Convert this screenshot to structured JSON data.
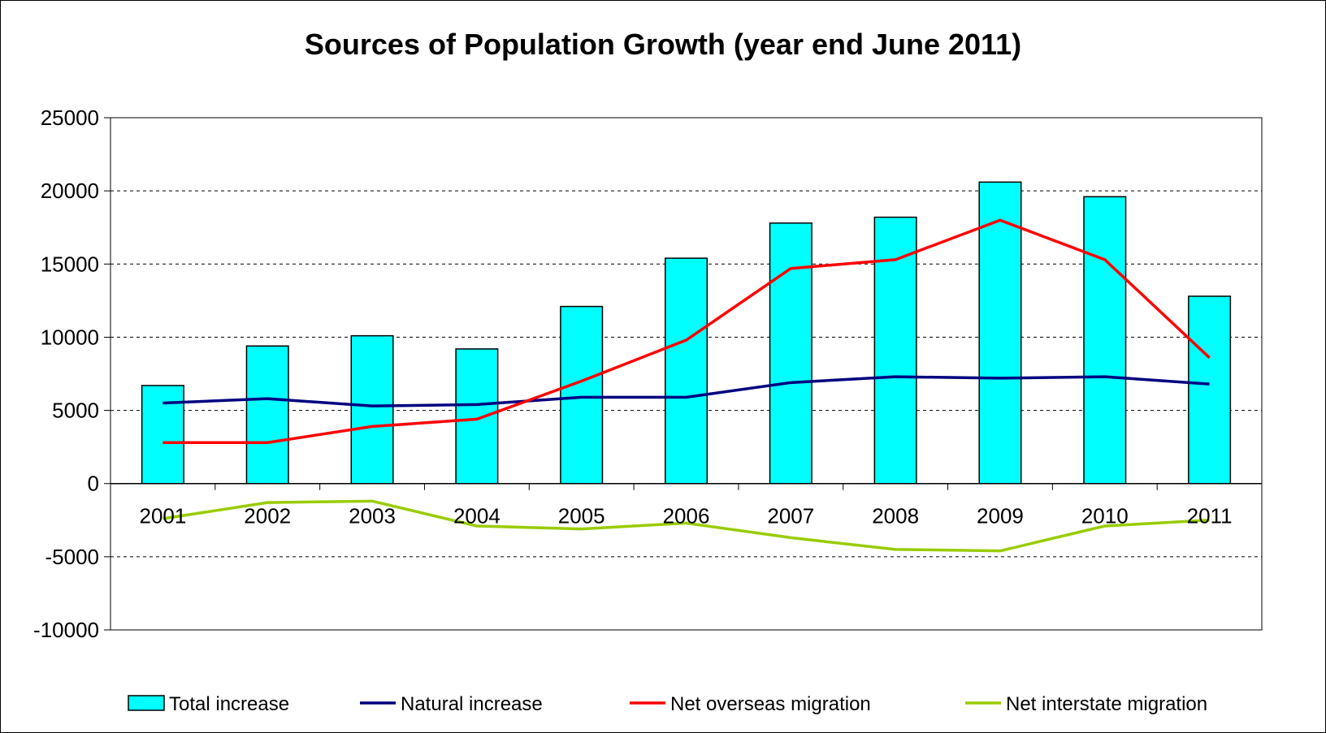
{
  "chart_data": {
    "type": "bar",
    "title": "Sources of Population Growth (year end June 2011)",
    "xlabel": "",
    "ylabel": "",
    "categories": [
      "2001",
      "2002",
      "2003",
      "2004",
      "2005",
      "2006",
      "2007",
      "2008",
      "2009",
      "2010",
      "2011"
    ],
    "ylim": [
      -10000,
      25000
    ],
    "yticks": [
      25000,
      20000,
      15000,
      10000,
      5000,
      0,
      -5000,
      -10000
    ],
    "ytick_labels": [
      "25000",
      "20000",
      "15000",
      "10000",
      "5000",
      "0",
      "-5000",
      "-10000"
    ],
    "grid": "horizontal dashed",
    "legend_position": "bottom",
    "series": [
      {
        "name": "Total increase",
        "type": "bar",
        "color": "#00FFFF",
        "values": [
          6700,
          9400,
          10100,
          9200,
          12100,
          15400,
          17800,
          18200,
          20600,
          19600,
          12800
        ]
      },
      {
        "name": "Natural increase",
        "type": "line",
        "color": "#000080",
        "values": [
          5500,
          5800,
          5300,
          5400,
          5900,
          5900,
          6900,
          7300,
          7200,
          7300,
          6800
        ]
      },
      {
        "name": "Net overseas migration",
        "type": "line",
        "color": "#FF0000",
        "values": [
          2800,
          2800,
          3900,
          4400,
          7000,
          9800,
          14700,
          15300,
          18000,
          15300,
          8600
        ]
      },
      {
        "name": "Net interstate migration",
        "type": "line",
        "color": "#99CC00",
        "values": [
          -2400,
          -1300,
          -1200,
          -2900,
          -3100,
          -2700,
          -3700,
          -4500,
          -4600,
          -2900,
          -2500
        ]
      }
    ]
  }
}
